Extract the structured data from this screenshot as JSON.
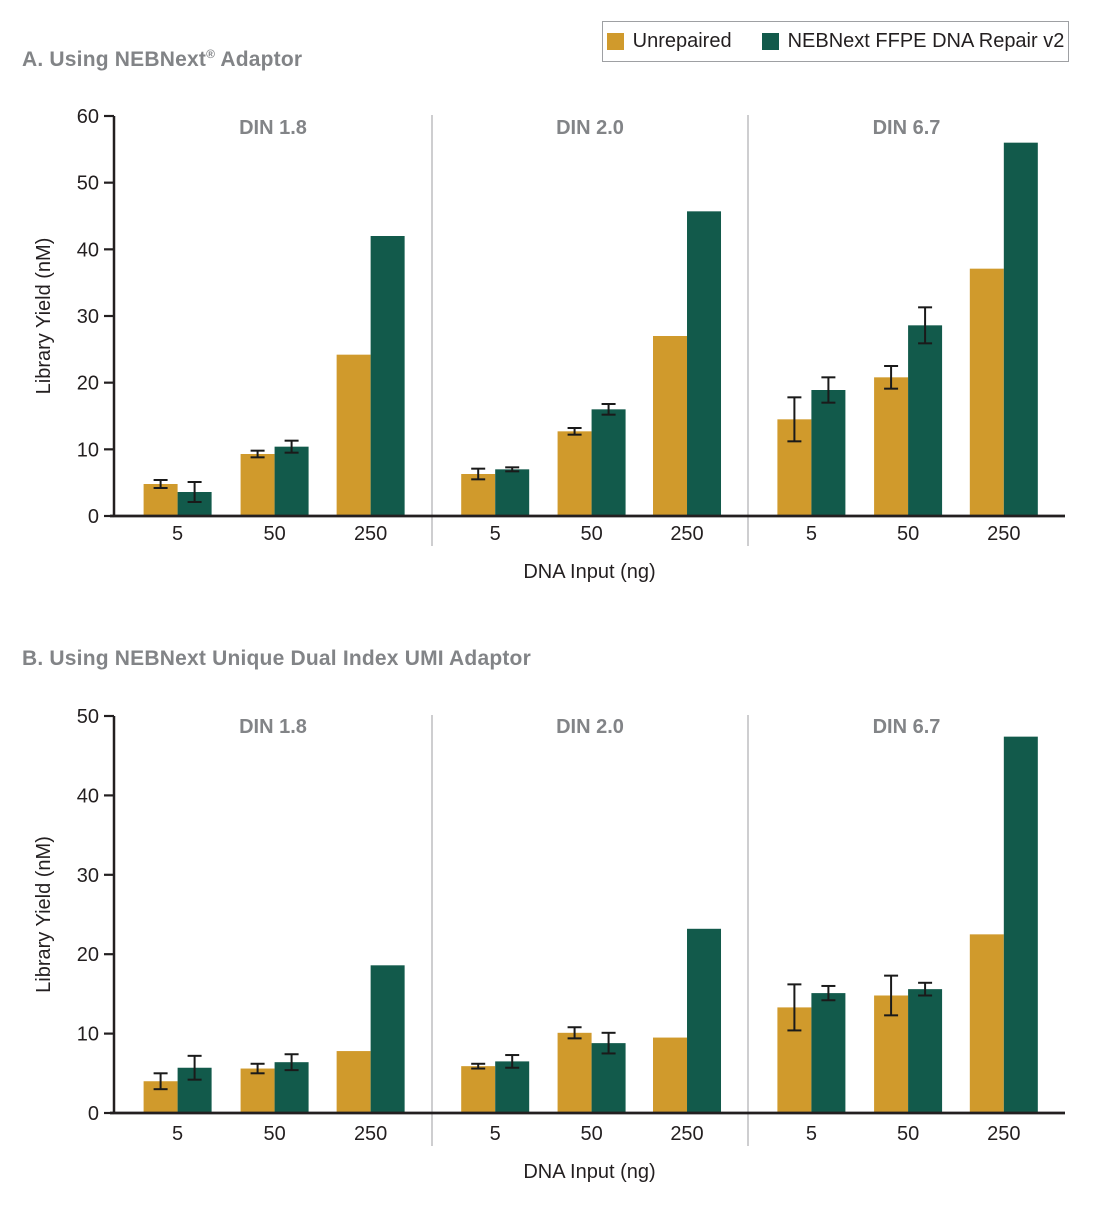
{
  "colors": {
    "unrepaired": "#D09A2C",
    "repaired": "#125A4B",
    "axis": "#231F20",
    "text": "#231F20",
    "heading_gray": "#828487",
    "separator": "#BDBEC0",
    "legend_border": "#9EA0A3",
    "error_bar": "#1A1A1A"
  },
  "legend": {
    "items": [
      {
        "label": "Unrepaired",
        "color": "#D09A2C"
      },
      {
        "label": "NEBNext FFPE DNA Repair v2",
        "color": "#125A4B"
      }
    ]
  },
  "panel_a": {
    "title_pre": "A. Using NEBNext",
    "title_sup": "®",
    "title_post": " Adaptor"
  },
  "panel_b": {
    "title_pre": "B. Using NEBNext Unique Dual Index UMI Adaptor",
    "title_sup": "",
    "title_post": ""
  },
  "chart_data": [
    {
      "type": "bar",
      "panel": "A",
      "title": "A. Using NEBNext® Adaptor",
      "xlabel": "DNA Input (ng)",
      "ylabel": "Library Yield (nM)",
      "ylim": [
        0,
        60
      ],
      "yticks": [
        0,
        10,
        20,
        30,
        40,
        50,
        60
      ],
      "grid": false,
      "legend_position": "top-right",
      "categories": [
        "5",
        "50",
        "250"
      ],
      "groups": [
        {
          "label": "DIN 1.8",
          "series": [
            {
              "name": "Unrepaired",
              "values": [
                4.8,
                9.3,
                24.2
              ],
              "errors": [
                0.6,
                0.5,
                0
              ]
            },
            {
              "name": "NEBNext FFPE DNA Repair v2",
              "values": [
                3.6,
                10.4,
                42.0
              ],
              "errors": [
                1.5,
                0.9,
                0
              ]
            }
          ]
        },
        {
          "label": "DIN 2.0",
          "series": [
            {
              "name": "Unrepaired",
              "values": [
                6.3,
                12.7,
                27.0
              ],
              "errors": [
                0.8,
                0.5,
                0
              ]
            },
            {
              "name": "NEBNext FFPE DNA Repair v2",
              "values": [
                7.0,
                16.0,
                45.7
              ],
              "errors": [
                0.3,
                0.8,
                0
              ]
            }
          ]
        },
        {
          "label": "DIN 6.7",
          "series": [
            {
              "name": "Unrepaired",
              "values": [
                14.5,
                20.8,
                37.1
              ],
              "errors": [
                3.3,
                1.7,
                0
              ]
            },
            {
              "name": "NEBNext FFPE DNA Repair v2",
              "values": [
                18.9,
                28.6,
                56.0
              ],
              "errors": [
                1.9,
                2.7,
                0
              ]
            }
          ]
        }
      ]
    },
    {
      "type": "bar",
      "panel": "B",
      "title": "B. Using NEBNext Unique Dual Index UMI Adaptor",
      "xlabel": "DNA Input (ng)",
      "ylabel": "Library Yield (nM)",
      "ylim": [
        0,
        50
      ],
      "yticks": [
        0,
        10,
        20,
        30,
        40,
        50
      ],
      "grid": false,
      "categories": [
        "5",
        "50",
        "250"
      ],
      "groups": [
        {
          "label": "DIN 1.8",
          "series": [
            {
              "name": "Unrepaired",
              "values": [
                4.0,
                5.6,
                7.8
              ],
              "errors": [
                1.0,
                0.6,
                0
              ]
            },
            {
              "name": "NEBNext FFPE DNA Repair v2",
              "values": [
                5.7,
                6.4,
                18.6
              ],
              "errors": [
                1.5,
                1.0,
                0
              ]
            }
          ]
        },
        {
          "label": "DIN 2.0",
          "series": [
            {
              "name": "Unrepaired",
              "values": [
                5.9,
                10.1,
                9.5
              ],
              "errors": [
                0.3,
                0.7,
                0
              ]
            },
            {
              "name": "NEBNext FFPE DNA Repair v2",
              "values": [
                6.5,
                8.8,
                23.2
              ],
              "errors": [
                0.8,
                1.3,
                0
              ]
            }
          ]
        },
        {
          "label": "DIN 6.7",
          "series": [
            {
              "name": "Unrepaired",
              "values": [
                13.3,
                14.8,
                22.5
              ],
              "errors": [
                2.9,
                2.5,
                0
              ]
            },
            {
              "name": "NEBNext FFPE DNA Repair v2",
              "values": [
                15.1,
                15.6,
                47.4
              ],
              "errors": [
                0.9,
                0.8,
                0
              ]
            }
          ]
        }
      ]
    }
  ]
}
